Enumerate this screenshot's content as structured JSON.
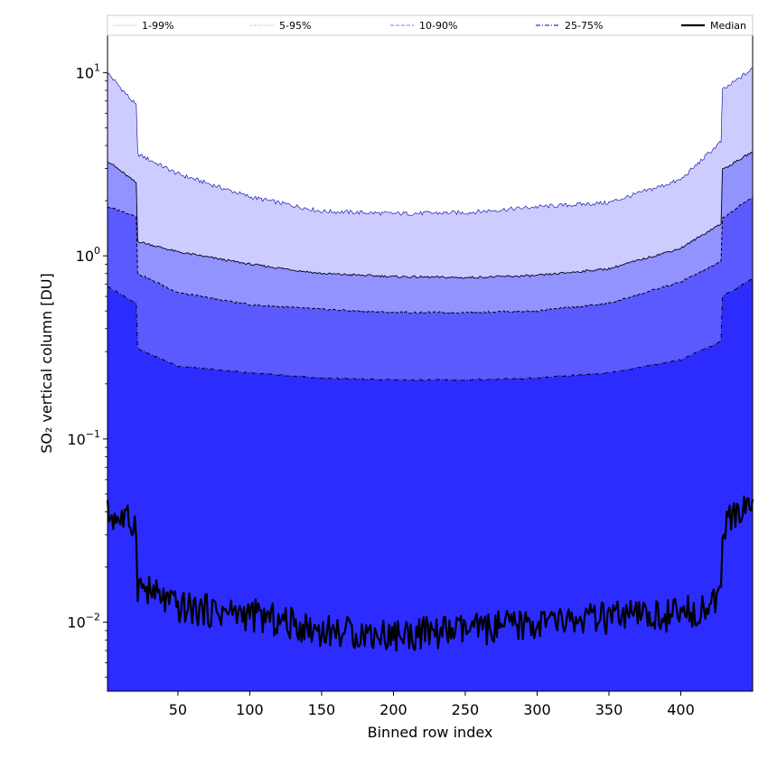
{
  "chart_data": {
    "type": "area",
    "title": "",
    "xlabel": "Binned row index",
    "ylabel": "SO₂ vertical column [DU]",
    "xlim": [
      1,
      450
    ],
    "ylim": [
      0.0042,
      16
    ],
    "yscale": "log",
    "x_ticks": [
      50,
      100,
      150,
      200,
      250,
      300,
      350,
      400
    ],
    "x_tick_labels": [
      "50",
      "100",
      "150",
      "200",
      "250",
      "300",
      "350",
      "400"
    ],
    "y_ticks": [
      0.01,
      0.1,
      1,
      10
    ],
    "y_tick_labels": [
      {
        "base": "10",
        "exp": "−2"
      },
      {
        "base": "10",
        "exp": "−1"
      },
      {
        "base": "10",
        "exp": "0"
      },
      {
        "base": "10",
        "exp": "1"
      }
    ],
    "legend": {
      "placement": "top",
      "entries": [
        {
          "label": "1-99%",
          "color": "#ccccff",
          "style": "solid-thin"
        },
        {
          "label": "5-95%",
          "color": "#8888dd",
          "style": "dotted"
        },
        {
          "label": "10-90%",
          "color": "#7777ff",
          "style": "dashed"
        },
        {
          "label": "25-75%",
          "color": "#5555ee",
          "style": "dashdot"
        },
        {
          "label": "Median",
          "color": "#000000",
          "style": "solid-thick"
        }
      ]
    },
    "bands": [
      {
        "name": "1-99%",
        "fill": "#ccccff"
      },
      {
        "name": "5-95%",
        "fill": "#9393ff"
      },
      {
        "name": "10-90%",
        "fill": "#5a5aff"
      },
      {
        "name": "25-75%",
        "fill": "#2c2cff"
      }
    ],
    "profile_control_points": {
      "x": [
        1,
        21,
        22,
        50,
        100,
        150,
        200,
        250,
        300,
        350,
        400,
        428,
        429,
        450
      ],
      "p99": [
        10,
        6.6,
        3.6,
        2.8,
        2.1,
        1.75,
        1.7,
        1.72,
        1.85,
        1.95,
        2.6,
        4.2,
        8.0,
        10.5
      ],
      "p95": [
        3.3,
        2.5,
        1.2,
        1.05,
        0.9,
        0.8,
        0.77,
        0.76,
        0.78,
        0.85,
        1.1,
        1.5,
        2.95,
        3.7
      ],
      "p90": [
        1.85,
        1.65,
        0.8,
        0.63,
        0.54,
        0.51,
        0.49,
        0.49,
        0.5,
        0.55,
        0.72,
        0.93,
        1.6,
        2.1
      ],
      "p75": [
        0.68,
        0.55,
        0.31,
        0.25,
        0.23,
        0.215,
        0.21,
        0.21,
        0.215,
        0.23,
        0.27,
        0.34,
        0.6,
        0.75
      ],
      "p25": [
        0.0042,
        0.0042,
        0.0042,
        0.0042,
        0.0042,
        0.0042,
        0.0042,
        0.0042,
        0.0042,
        0.0042,
        0.0042,
        0.0042,
        0.0042,
        0.0042
      ],
      "median": [
        0.039,
        0.034,
        0.016,
        0.012,
        0.011,
        0.009,
        0.0085,
        0.009,
        0.0098,
        0.0105,
        0.011,
        0.013,
        0.033,
        0.046
      ]
    }
  }
}
